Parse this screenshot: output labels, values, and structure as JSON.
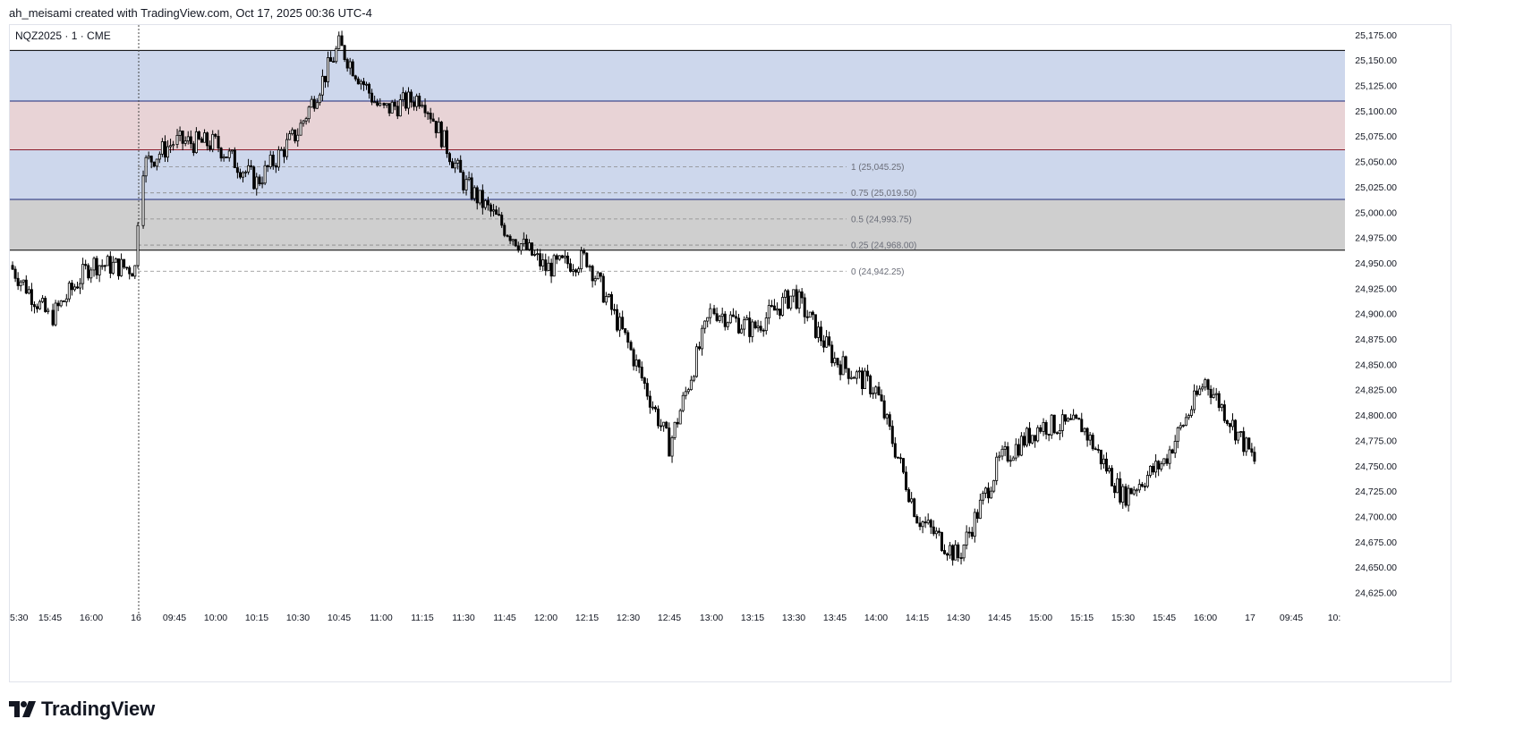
{
  "header": {
    "attribution": "ah_meisami created with TradingView.com, Oct 17, 2025 00:36 UTC-4"
  },
  "symbol_label": "NQZ2025 · 1 · CME",
  "brand": {
    "name": "TradingView"
  },
  "colors": {
    "zone_blue": "#cdd7ec",
    "zone_red": "#e8d3d6",
    "zone_gray": "#cfcfcf",
    "zone_border_blue": "#1c2a7a",
    "zone_border_red": "#8b1a2a",
    "zone_border_black": "#000000",
    "candle": "#000000",
    "fib_line": "#8a8a8a",
    "session_line": "#444444"
  },
  "chart_data": {
    "type": "candlestick",
    "symbol": "NQZ2025",
    "interval": "1",
    "exchange": "CME",
    "y_axis": {
      "position": "right",
      "ylim": [
        24610,
        25185
      ],
      "tick_labels": [
        "25,175.00",
        "25,150.00",
        "25,125.00",
        "25,100.00",
        "25,075.00",
        "25,050.00",
        "25,025.00",
        "25,000.00",
        "24,975.00",
        "24,950.00",
        "24,925.00",
        "24,900.00",
        "24,875.00",
        "24,850.00",
        "24,825.00",
        "24,800.00",
        "24,775.00",
        "24,750.00",
        "24,725.00",
        "24,700.00",
        "24,675.00",
        "24,650.00",
        "24,625.00"
      ],
      "tick_values": [
        25175,
        25150,
        25125,
        25100,
        25075,
        25050,
        25025,
        25000,
        24975,
        24950,
        24925,
        24900,
        24875,
        24850,
        24825,
        24800,
        24775,
        24750,
        24725,
        24700,
        24675,
        24650,
        24625
      ]
    },
    "x_axis": {
      "tick_labels": [
        "5:30",
        "15:45",
        "16:00",
        "16",
        "09:45",
        "10:00",
        "10:15",
        "10:30",
        "10:45",
        "11:00",
        "11:15",
        "11:30",
        "11:45",
        "12:00",
        "12:15",
        "12:30",
        "12:45",
        "13:00",
        "13:15",
        "13:30",
        "13:45",
        "14:00",
        "14:15",
        "14:30",
        "14:45",
        "15:00",
        "15:15",
        "15:30",
        "15:45",
        "16:00",
        "17",
        "09:45",
        "10:"
      ],
      "session_break_label": "16"
    },
    "zones": [
      {
        "name": "upper-blue",
        "from": 25110,
        "to": 25160
      },
      {
        "name": "red",
        "from": 25062,
        "to": 25110
      },
      {
        "name": "lower-blue",
        "from": 25013,
        "to": 25062
      },
      {
        "name": "gray",
        "from": 24963,
        "to": 25013
      }
    ],
    "fib_levels": [
      {
        "ratio": "1",
        "price": 25045.25,
        "label": "1 (25,045.25)"
      },
      {
        "ratio": "0.75",
        "price": 25019.5,
        "label": "0.75 (25,019.50)"
      },
      {
        "ratio": "0.5",
        "price": 24993.75,
        "label": "0.5 (24,993.75)"
      },
      {
        "ratio": "0.25",
        "price": 24968.0,
        "label": "0.25 (24,968.00)"
      },
      {
        "ratio": "0",
        "price": 24942.25,
        "label": "0 (24,942.25)"
      }
    ],
    "price_path": {
      "description": "approximate close path, keyed by x-axis tick label position",
      "points": [
        [
          "5:30",
          24948
        ],
        [
          "15:45",
          24895
        ],
        [
          "16:00",
          24950
        ],
        [
          "16",
          24945
        ],
        [
          "16",
          25045
        ],
        [
          "09:45",
          25070
        ],
        [
          "10:00",
          25068
        ],
        [
          "10:15",
          25030
        ],
        [
          "10:30",
          25080
        ],
        [
          "10:45",
          25165
        ],
        [
          "11:00",
          25100
        ],
        [
          "11:15",
          25115
        ],
        [
          "11:30",
          25030
        ],
        [
          "11:45",
          24985
        ],
        [
          "12:00",
          24945
        ],
        [
          "12:15",
          24955
        ],
        [
          "12:30",
          24870
        ],
        [
          "12:45",
          24770
        ],
        [
          "13:00",
          24905
        ],
        [
          "13:15",
          24885
        ],
        [
          "13:30",
          24920
        ],
        [
          "13:45",
          24855
        ],
        [
          "14:00",
          24825
        ],
        [
          "14:15",
          24700
        ],
        [
          "14:30",
          24660
        ],
        [
          "14:45",
          24755
        ],
        [
          "15:00",
          24790
        ],
        [
          "15:15",
          24790
        ],
        [
          "15:30",
          24720
        ],
        [
          "15:45",
          24755
        ],
        [
          "16:00",
          24835
        ],
        [
          "17",
          24752
        ]
      ]
    }
  }
}
